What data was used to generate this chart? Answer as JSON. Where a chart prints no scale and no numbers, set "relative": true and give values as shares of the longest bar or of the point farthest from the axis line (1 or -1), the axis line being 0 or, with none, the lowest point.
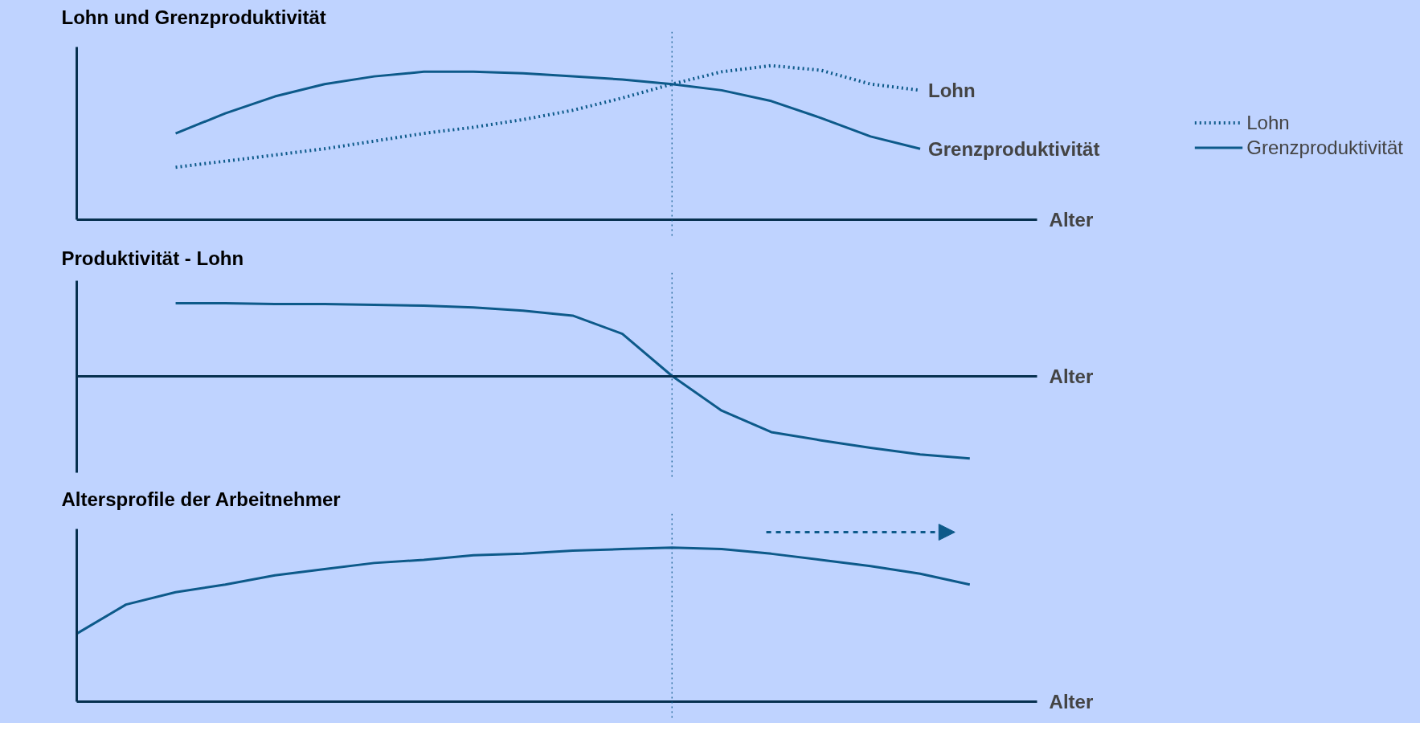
{
  "chart_data": [
    {
      "type": "line",
      "title": "Lohn und Grenzproduktivität",
      "xlabel": "Alter",
      "relative": true,
      "legend": "right",
      "categories": [
        null,
        null,
        null,
        null,
        null,
        null,
        null,
        null,
        null,
        null,
        null,
        null,
        null,
        null,
        null,
        null,
        null,
        null,
        null
      ],
      "series": [
        {
          "name": "Lohn",
          "color": "#0d5a8a",
          "line_style": "dotted",
          "values": [
            null,
            null,
            0.34,
            0.38,
            0.42,
            0.46,
            0.51,
            0.56,
            0.6,
            0.65,
            0.71,
            0.79,
            0.88,
            0.96,
            1.0,
            0.97,
            0.88,
            0.84,
            null
          ]
        },
        {
          "name": "Grenzproduktivität",
          "color": "#0d5a8a",
          "line_style": "solid",
          "values": [
            null,
            null,
            0.56,
            0.69,
            0.8,
            0.88,
            0.93,
            0.96,
            0.96,
            0.95,
            0.93,
            0.91,
            0.88,
            0.84,
            0.77,
            0.66,
            0.54,
            0.46,
            null
          ]
        }
      ]
    },
    {
      "type": "line",
      "title": "Produktivität - Lohn",
      "xlabel": "Alter",
      "relative": true,
      "categories": [
        null,
        null,
        null,
        null,
        null,
        null,
        null,
        null,
        null,
        null,
        null,
        null,
        null,
        null,
        null,
        null,
        null,
        null,
        null
      ],
      "series": [
        {
          "color": "#0d5a8a",
          "line_style": "solid",
          "values": [
            null,
            null,
            0.88,
            0.88,
            0.87,
            0.87,
            0.86,
            0.85,
            0.83,
            0.79,
            0.73,
            0.51,
            0,
            -0.42,
            -0.68,
            -0.78,
            -0.87,
            -0.95,
            -1
          ]
        }
      ]
    },
    {
      "type": "line",
      "title": "Altersprofile der Arbeitnehmer",
      "xlabel": "Alter",
      "relative": true,
      "categories": [
        null,
        null,
        null,
        null,
        null,
        null,
        null,
        null,
        null,
        null,
        null,
        null,
        null,
        null,
        null,
        null,
        null,
        null,
        null
      ],
      "series": [
        {
          "color": "#0d5a8a",
          "line_style": "solid",
          "values": [
            0.44,
            0.63,
            0.71,
            0.76,
            0.82,
            0.86,
            0.9,
            0.92,
            0.95,
            0.96,
            0.98,
            0.99,
            1.0,
            0.99,
            0.96,
            0.92,
            0.88,
            0.83,
            0.76
          ]
        }
      ]
    }
  ]
}
